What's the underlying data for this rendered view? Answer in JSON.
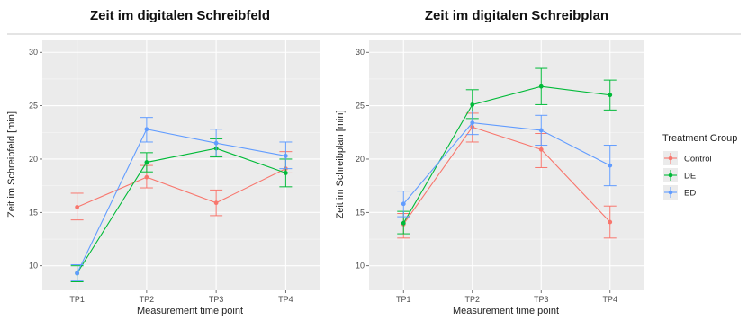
{
  "chart_data": [
    {
      "type": "line",
      "title": "Zeit im digitalen Schreibfeld",
      "xlabel": "Measurement time point",
      "ylabel": "Zeit im Schreibfeld [min]",
      "categories": [
        "TP1",
        "TP2",
        "TP3",
        "TP4"
      ],
      "ylim": [
        7.7,
        31.2
      ],
      "yticks": [
        10,
        15,
        20,
        25,
        30
      ],
      "grid": true,
      "error_bars": true,
      "series": [
        {
          "name": "Control",
          "color": "#F8766D",
          "values": [
            15.5,
            18.3,
            15.9,
            19.1
          ],
          "lower": [
            14.3,
            17.3,
            14.7,
            18.7
          ],
          "upper": [
            16.8,
            19.4,
            17.1,
            20.7
          ]
        },
        {
          "name": "DE",
          "color": "#00BA38",
          "values": [
            9.3,
            19.7,
            21.0,
            18.7
          ],
          "lower": [
            8.5,
            18.8,
            20.2,
            17.4
          ],
          "upper": [
            10.0,
            20.6,
            21.9,
            20.0
          ]
        },
        {
          "name": "ED",
          "color": "#619CFF",
          "values": [
            9.3,
            22.8,
            21.5,
            20.3
          ],
          "lower": [
            8.6,
            21.6,
            20.3,
            19.1
          ],
          "upper": [
            10.1,
            23.9,
            22.8,
            21.6
          ]
        }
      ]
    },
    {
      "type": "line",
      "title": "Zeit im digitalen Schreibplan",
      "xlabel": "Measurement time point",
      "ylabel": "Zeit im Schreibplan [min]",
      "categories": [
        "TP1",
        "TP2",
        "TP3",
        "TP4"
      ],
      "ylim": [
        7.7,
        31.2
      ],
      "yticks": [
        10,
        15,
        20,
        25,
        30
      ],
      "grid": true,
      "error_bars": true,
      "series": [
        {
          "name": "Control",
          "color": "#F8766D",
          "values": [
            13.9,
            23.0,
            20.9,
            14.1
          ],
          "lower": [
            12.6,
            21.6,
            19.2,
            12.6
          ],
          "upper": [
            14.9,
            24.3,
            22.4,
            15.6
          ]
        },
        {
          "name": "DE",
          "color": "#00BA38",
          "values": [
            14.0,
            25.1,
            26.8,
            26.0
          ],
          "lower": [
            13.0,
            23.8,
            25.1,
            24.6
          ],
          "upper": [
            15.1,
            26.5,
            28.5,
            27.4
          ]
        },
        {
          "name": "ED",
          "color": "#619CFF",
          "values": [
            15.8,
            23.4,
            22.7,
            19.4
          ],
          "lower": [
            14.6,
            22.3,
            21.3,
            17.5
          ],
          "upper": [
            17.0,
            24.5,
            24.1,
            21.3
          ]
        }
      ]
    }
  ],
  "legend": {
    "title": "Treatment Group",
    "items": [
      {
        "label": "Control",
        "color": "#F8766D"
      },
      {
        "label": "DE",
        "color": "#00BA38"
      },
      {
        "label": "ED",
        "color": "#619CFF"
      }
    ]
  }
}
